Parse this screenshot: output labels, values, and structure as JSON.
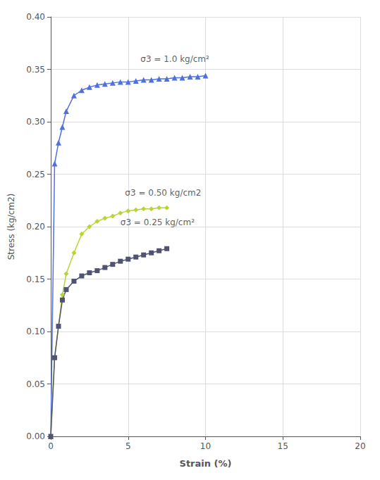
{
  "chart_data": {
    "type": "line",
    "xlabel": "Strain (%)",
    "ylabel": "Stress (kg/cm2)",
    "xlim": [
      0,
      20
    ],
    "ylim": [
      0,
      0.4
    ],
    "xticks": [
      0,
      5,
      10,
      15,
      20
    ],
    "yticks": [
      {
        "value": 0,
        "label": "0.00"
      },
      {
        "value": 0.05,
        "label": "0.05"
      },
      {
        "value": 0.1,
        "label": "0.10"
      },
      {
        "value": 0.15,
        "label": "0.15"
      },
      {
        "value": 0.2,
        "label": "0.20"
      },
      {
        "value": 0.25,
        "label": "0.25"
      },
      {
        "value": 0.3,
        "label": "0.30"
      },
      {
        "value": 0.35,
        "label": "0.35"
      },
      {
        "value": 0.4,
        "label": "0.40"
      }
    ],
    "grid": true,
    "series": [
      {
        "marker": "triangle",
        "x": [
          0,
          0.25,
          0.5,
          0.75,
          1.0,
          1.5,
          2.0,
          2.5,
          3.0,
          3.5,
          4.0,
          4.5,
          5.0,
          5.5,
          6.0,
          6.5,
          7.0,
          7.5,
          8.0,
          8.5,
          9.0,
          9.5,
          10.0
        ],
        "values": [
          0,
          0.26,
          0.28,
          0.295,
          0.31,
          0.325,
          0.33,
          0.333,
          0.335,
          0.336,
          0.337,
          0.338,
          0.338,
          0.339,
          0.34,
          0.34,
          0.341,
          0.341,
          0.342,
          0.342,
          0.343,
          0.343,
          0.344
        ]
      },
      {
        "marker": "diamond",
        "x": [
          0,
          0.25,
          0.5,
          0.75,
          1.0,
          1.5,
          2.0,
          2.5,
          3.0,
          3.5,
          4.0,
          4.5,
          5.0,
          5.5,
          6.0,
          6.5,
          7.0,
          7.5
        ],
        "values": [
          0,
          0.075,
          0.105,
          0.135,
          0.155,
          0.175,
          0.193,
          0.2,
          0.205,
          0.208,
          0.21,
          0.213,
          0.215,
          0.216,
          0.217,
          0.217,
          0.218,
          0.218
        ]
      },
      {
        "marker": "square",
        "x": [
          0,
          0.25,
          0.5,
          0.75,
          1.0,
          1.5,
          2.0,
          2.5,
          3.0,
          3.5,
          4.0,
          4.5,
          5.0,
          5.5,
          6.0,
          6.5,
          7.0,
          7.5
        ],
        "values": [
          0,
          0.075,
          0.105,
          0.13,
          0.14,
          0.148,
          0.153,
          0.156,
          0.158,
          0.161,
          0.164,
          0.167,
          0.169,
          0.171,
          0.173,
          0.175,
          0.177,
          0.179
        ]
      }
    ],
    "annotations": [
      {
        "text": "σ3 = 1.0 kg/cm²",
        "x": 5.8,
        "y": 0.356
      },
      {
        "text": "σ3 = 0.50 kg/cm2",
        "x": 4.8,
        "y": 0.228
      },
      {
        "text": "σ3 = 0.25 kg/cm²",
        "x": 4.5,
        "y": 0.2
      }
    ]
  }
}
